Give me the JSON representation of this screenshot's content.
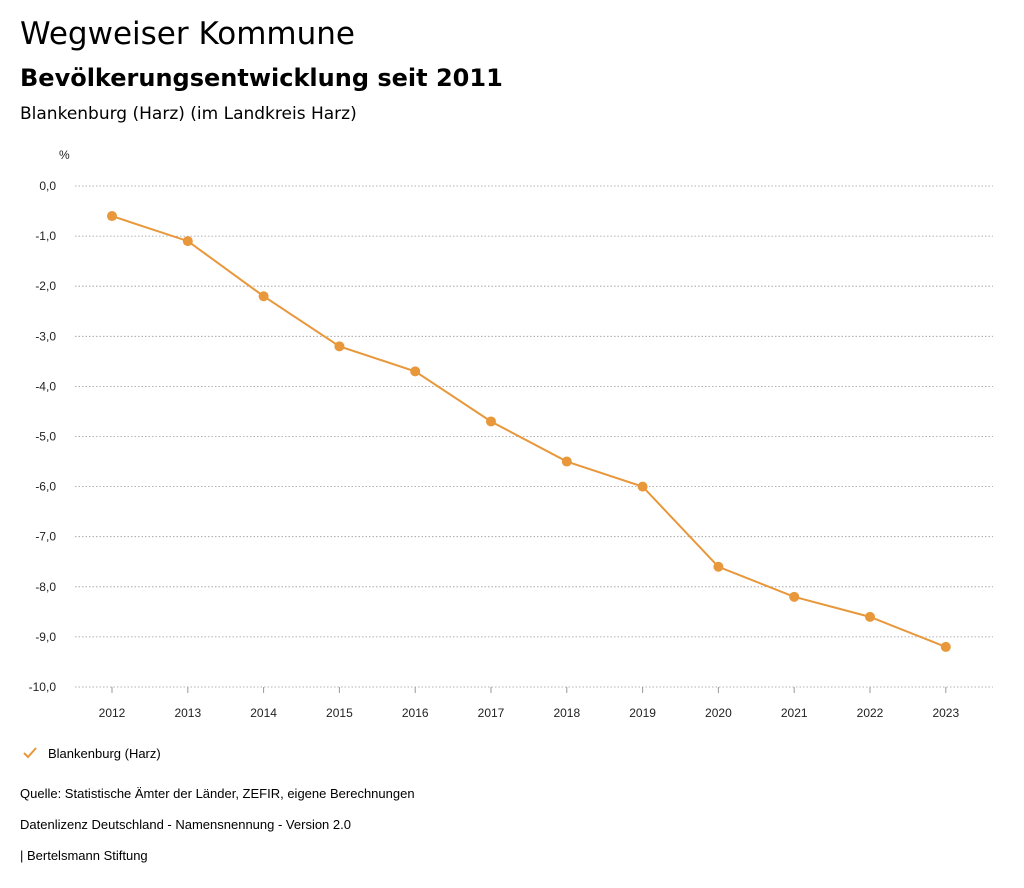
{
  "header": {
    "title": "Wegweiser Kommune",
    "subtitle": "Bevölkerungsentwicklung seit 2011",
    "place": "Blankenburg (Harz) (im Landkreis Harz)"
  },
  "chart_data": {
    "type": "line",
    "unit_label": "%",
    "ylim": [
      -10.0,
      0.0
    ],
    "y_ticks": [
      "0,0",
      "-1,0",
      "-2,0",
      "-3,0",
      "-4,0",
      "-5,0",
      "-6,0",
      "-7,0",
      "-8,0",
      "-9,0",
      "-10,0"
    ],
    "y_tick_values": [
      0,
      -1,
      -2,
      -3,
      -4,
      -5,
      -6,
      -7,
      -8,
      -9,
      -10
    ],
    "categories": [
      "2012",
      "2013",
      "2014",
      "2015",
      "2016",
      "2017",
      "2018",
      "2019",
      "2020",
      "2021",
      "2022",
      "2023"
    ],
    "series": [
      {
        "name": "Blankenburg (Harz)",
        "color": "#e8973a",
        "values": [
          -0.6,
          -1.1,
          -2.2,
          -3.2,
          -3.7,
          -4.7,
          -5.5,
          -6.0,
          -7.6,
          -8.2,
          -8.6,
          -9.2
        ]
      }
    ],
    "grid": true,
    "legend_position": "bottom-left"
  },
  "footer": {
    "source": "Quelle: Statistische Ämter der Länder, ZEFIR, eigene Berechnungen",
    "license": "Datenlizenz Deutschland - Namensnennung - Version 2.0",
    "credit": "| Bertelsmann Stiftung"
  }
}
